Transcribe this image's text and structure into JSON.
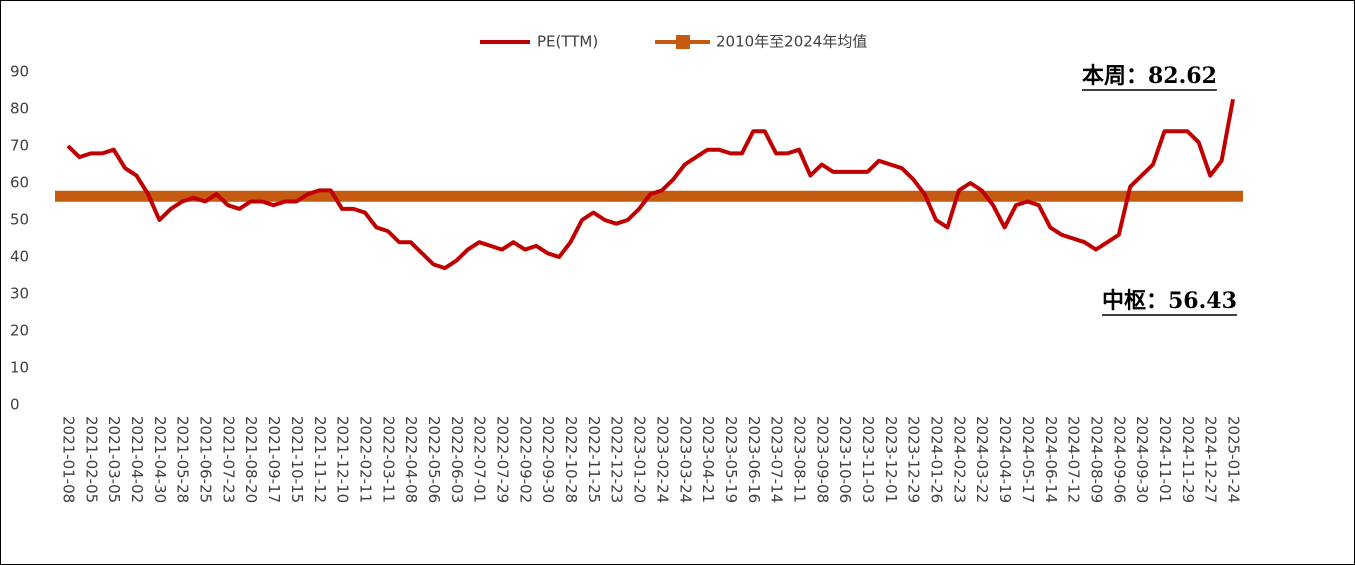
{
  "chart_data": {
    "type": "line",
    "categories": [
      "2021-01-08",
      null,
      "2021-02-05",
      null,
      "2021-03-05",
      null,
      "2021-04-02",
      null,
      "2021-04-30",
      null,
      "2021-05-28",
      null,
      "2021-06-25",
      null,
      "2021-07-23",
      null,
      "2021-08-20",
      null,
      "2021-09-17",
      null,
      "2021-10-15",
      null,
      "2021-11-12",
      null,
      "2021-12-10",
      null,
      "2022-02-11",
      null,
      "2022-03-11",
      null,
      "2022-04-08",
      null,
      "2022-05-06",
      null,
      "2022-06-03",
      null,
      "2022-07-01",
      null,
      "2022-07-29",
      null,
      "2022-09-02",
      null,
      "2022-09-30",
      null,
      "2022-10-28",
      null,
      "2022-11-25",
      null,
      "2022-12-23",
      null,
      "2023-01-20",
      null,
      "2023-02-24",
      null,
      "2023-03-24",
      null,
      "2023-04-21",
      null,
      "2023-05-19",
      null,
      "2023-06-16",
      null,
      "2023-07-14",
      null,
      "2023-08-11",
      null,
      "2023-09-08",
      null,
      "2023-10-06",
      null,
      "2023-11-03",
      null,
      "2023-12-01",
      null,
      "2023-12-29",
      null,
      "2024-01-26",
      null,
      "2024-02-23",
      null,
      "2024-03-22",
      null,
      "2024-04-19",
      null,
      "2024-05-17",
      null,
      "2024-06-14",
      null,
      "2024-07-12",
      null,
      "2024-08-09",
      null,
      "2024-09-06",
      null,
      "2024-09-30",
      null,
      "2024-11-01",
      null,
      "2024-11-29",
      null,
      "2024-12-27",
      null,
      "2025-01-24"
    ],
    "series": [
      {
        "name": "PE(TTM)",
        "color": "#c00000",
        "values": [
          70,
          67,
          68,
          68,
          69,
          64,
          62,
          57,
          50,
          53,
          55,
          56,
          55,
          57,
          54,
          53,
          55,
          55,
          54,
          55,
          55,
          57,
          58,
          58,
          53,
          53,
          52,
          48,
          47,
          44,
          44,
          41,
          38,
          37,
          39,
          42,
          44,
          43,
          42,
          44,
          42,
          43,
          41,
          40,
          44,
          50,
          52,
          50,
          49,
          50,
          53,
          57,
          58,
          61,
          65,
          67,
          69,
          69,
          68,
          68,
          74,
          74,
          68,
          68,
          69,
          62,
          65,
          63,
          63,
          63,
          63,
          66,
          65,
          64,
          61,
          57,
          50,
          48,
          58,
          60,
          58,
          54,
          48,
          54,
          55,
          54,
          48,
          46,
          45,
          44,
          42,
          44,
          46,
          59,
          62,
          65,
          74,
          74,
          74,
          71,
          62,
          66,
          82.62
        ]
      },
      {
        "name": "2010年至2024年均值",
        "color": "#c55a11",
        "value": 56.43
      }
    ],
    "ylim": [
      0,
      90
    ],
    "yticks": [
      0,
      10,
      20,
      30,
      40,
      50,
      60,
      70,
      80,
      90
    ],
    "annotations": [
      "本周：82.62",
      "中枢：56.43"
    ]
  }
}
